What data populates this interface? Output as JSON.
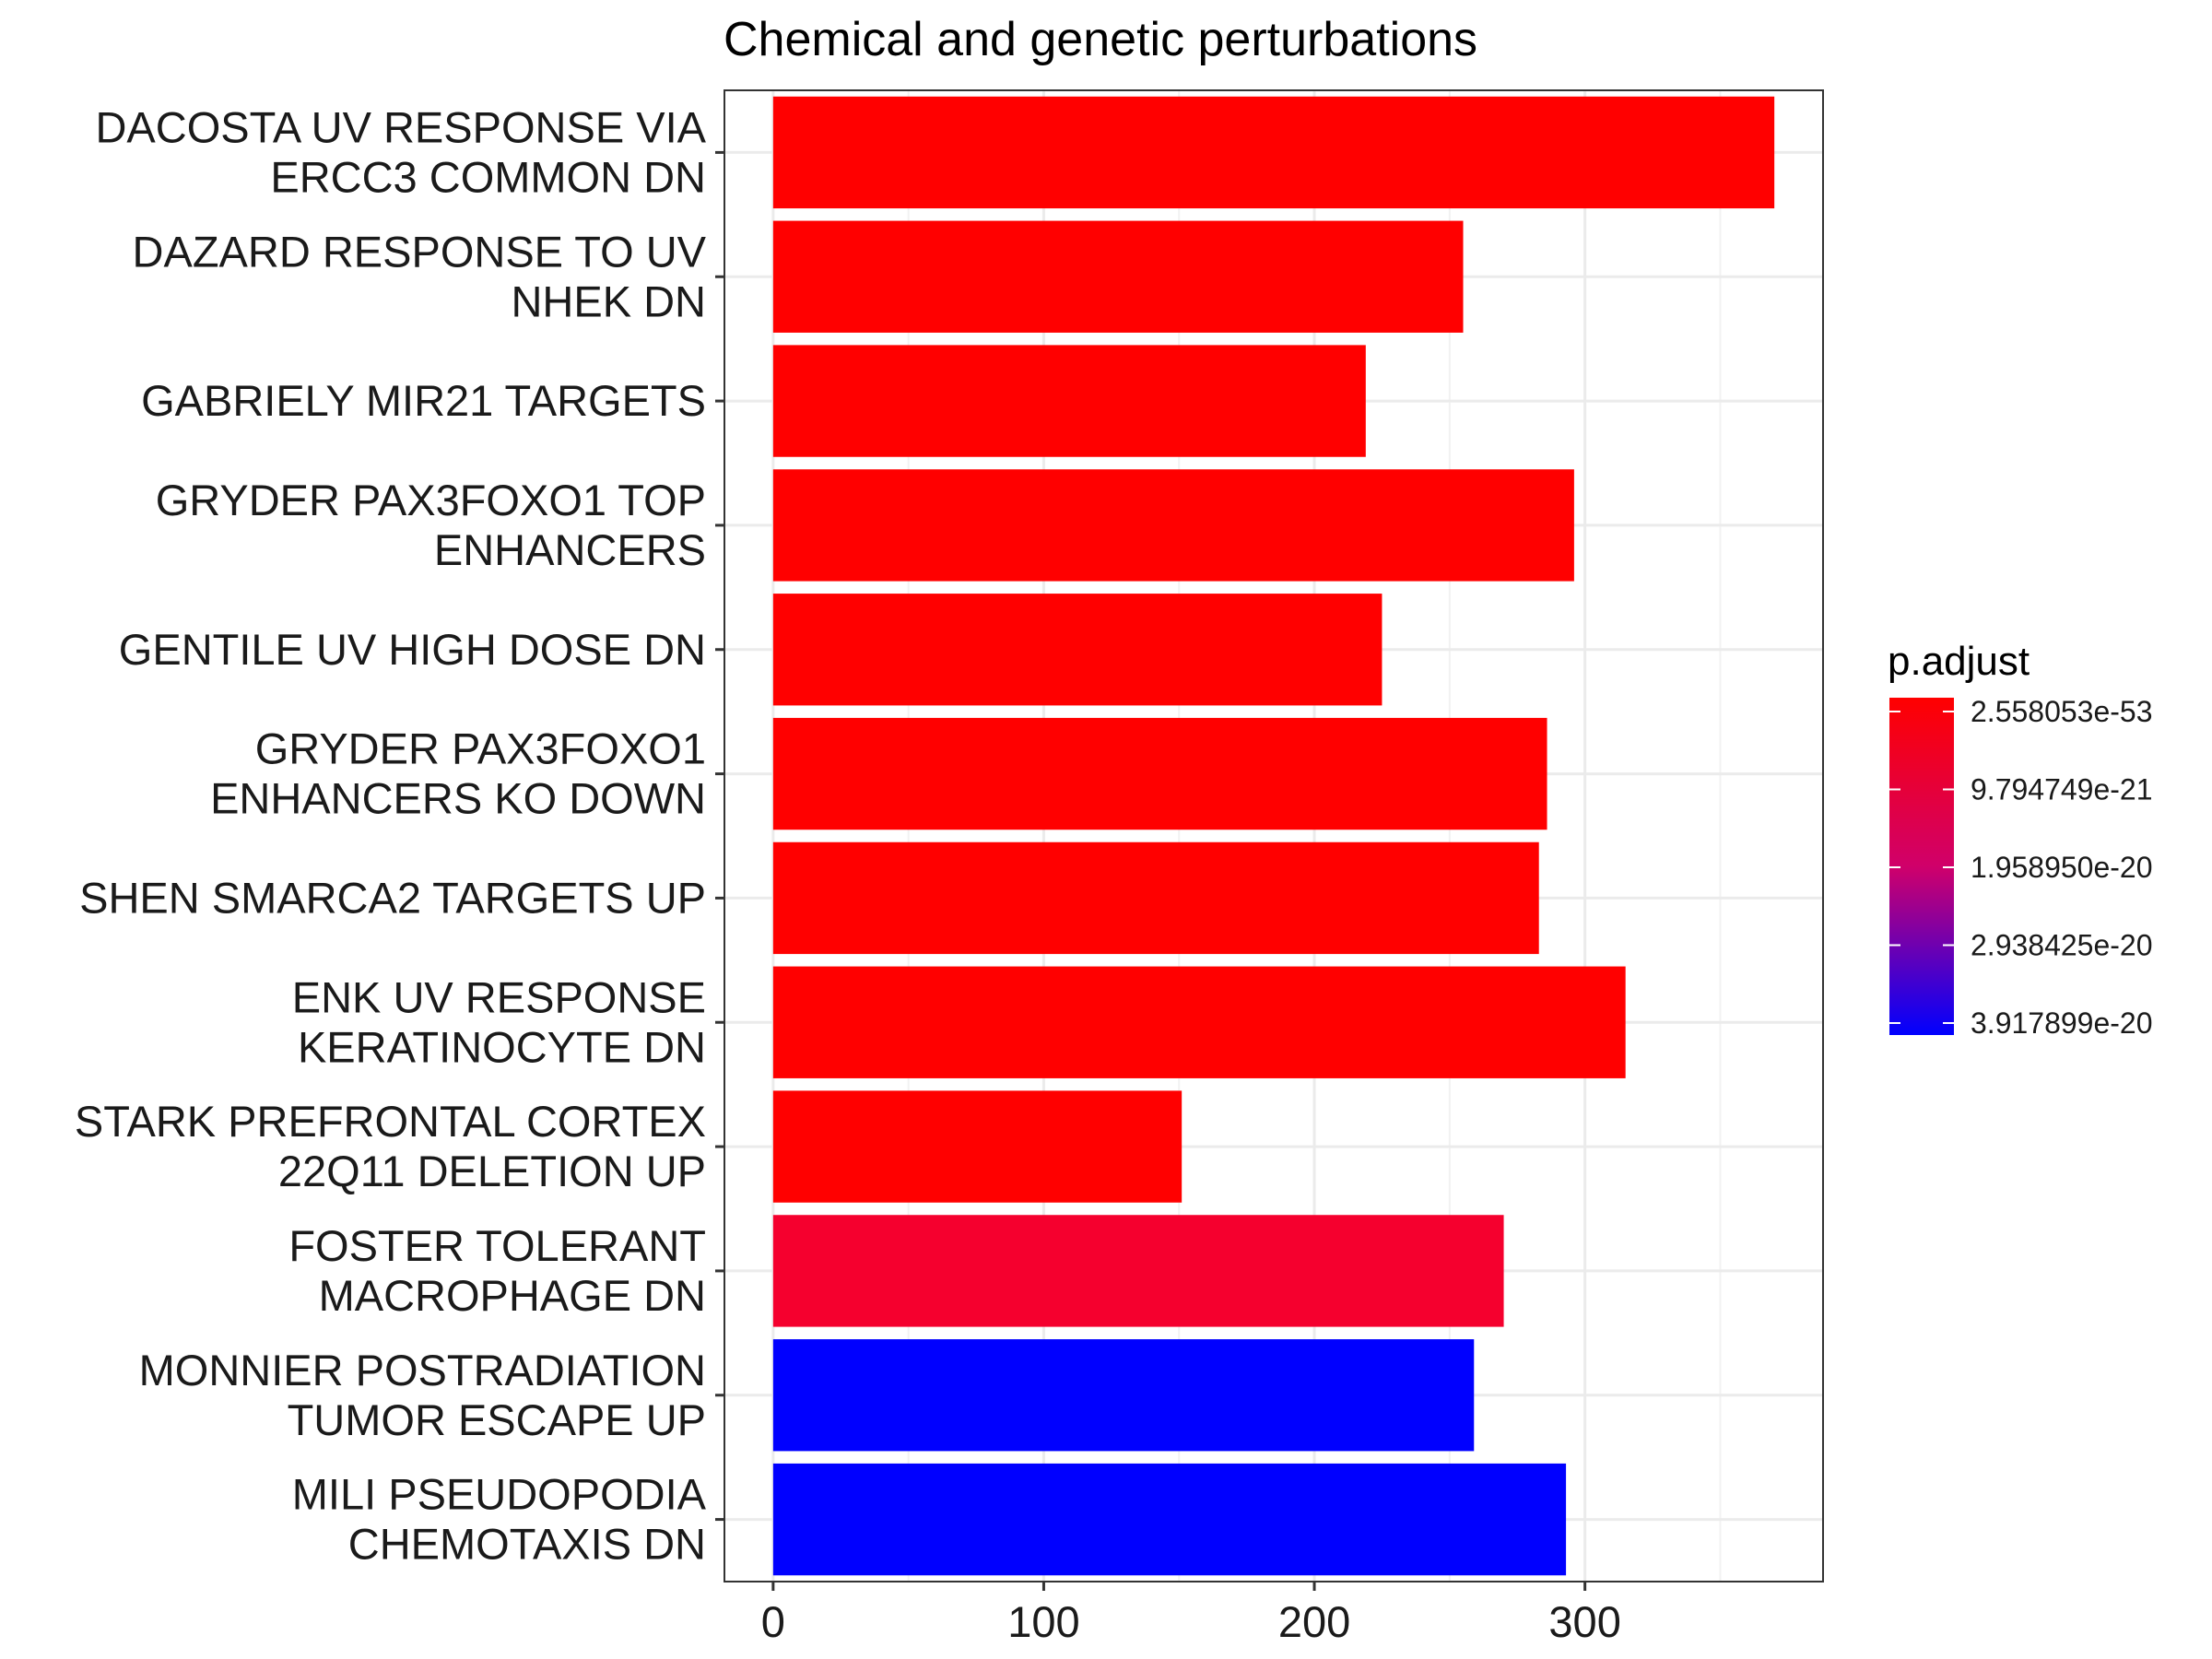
{
  "chart_data": {
    "type": "bar",
    "orientation": "horizontal",
    "title": "Chemical and genetic perturbations",
    "xlabel": "",
    "ylabel": "",
    "xlim": [
      -18,
      388
    ],
    "x_ticks": [
      0,
      100,
      200,
      300
    ],
    "grid": true,
    "categories": [
      [
        "DACOSTA UV RESPONSE VIA",
        "ERCC3 COMMON DN"
      ],
      [
        "DAZARD RESPONSE TO UV",
        "NHEK DN"
      ],
      [
        "GABRIELY MIR21 TARGETS"
      ],
      [
        "GRYDER PAX3FOXO1 TOP",
        "ENHANCERS"
      ],
      [
        "GENTILE UV HIGH DOSE DN"
      ],
      [
        "GRYDER PAX3FOXO1",
        "ENHANCERS KO DOWN"
      ],
      [
        "SHEN SMARCA2 TARGETS UP"
      ],
      [
        "ENK UV RESPONSE",
        "KERATINOCYTE DN"
      ],
      [
        "STARK PREFRONTAL CORTEX",
        "22Q11 DELETION UP"
      ],
      [
        "FOSTER TOLERANT",
        "MACROPHAGE DN"
      ],
      [
        "MONNIER POSTRADIATION",
        "TUMOR ESCAPE UP"
      ],
      [
        "MILI PSEUDOPODIA",
        "CHEMOTAXIS DN"
      ]
    ],
    "values": [
      370,
      255,
      219,
      296,
      225,
      286,
      283,
      315,
      151,
      270,
      259,
      293
    ],
    "bar_colors": [
      "#ff0000",
      "#ff0000",
      "#ff0000",
      "#ff0000",
      "#ff0000",
      "#ff0000",
      "#ff0000",
      "#ff0000",
      "#ff0000",
      "#f5002e",
      "#0000ff",
      "#0000ff"
    ],
    "legend": {
      "title": "p.adjust",
      "placement": "right",
      "labels": [
        "2.558053e-53",
        "9.794749e-21",
        "1.958950e-20",
        "2.938425e-20",
        "3.917899e-20"
      ],
      "color_low": "#ff0000",
      "color_high": "#0000ff"
    }
  }
}
